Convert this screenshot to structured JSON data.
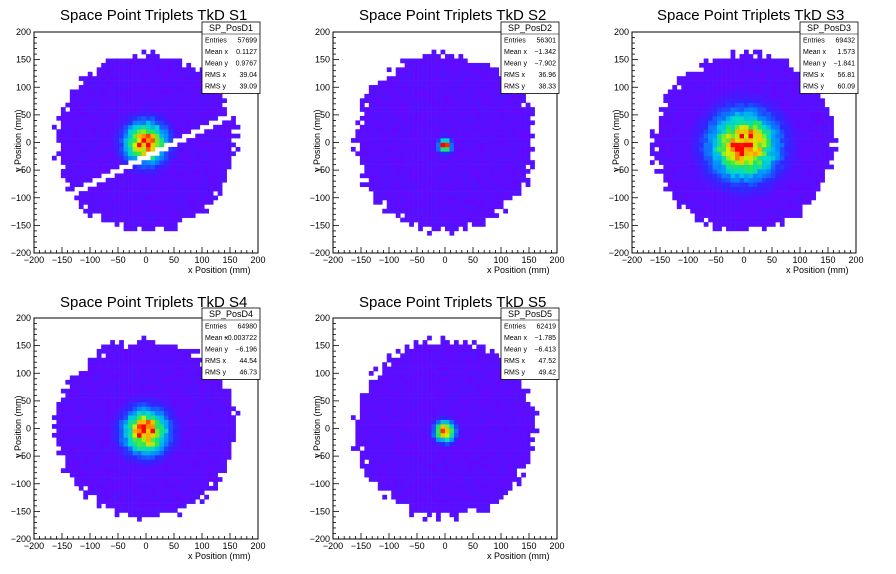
{
  "chart_data": [
    {
      "type": "heatmap",
      "title": "Space Point Triplets TkD S1",
      "xlabel": "x Position (mm)",
      "ylabel": "y Position (mm)",
      "xlim": [
        -200,
        200
      ],
      "ylim": [
        -200,
        200
      ],
      "xticks": [
        -200,
        -150,
        -100,
        -50,
        0,
        50,
        100,
        150,
        200
      ],
      "yticks": [
        -200,
        -150,
        -100,
        -50,
        0,
        50,
        100,
        150,
        200
      ],
      "stats": {
        "name": "SP_PosD1",
        "rows": [
          [
            "Entries",
            "57699"
          ],
          [
            "Mean x",
            "0.1127"
          ],
          [
            "Mean y",
            "0.9767"
          ],
          [
            "RMS x",
            "39.04"
          ],
          [
            "RMS y",
            "39.09"
          ]
        ]
      },
      "distribution": {
        "radius": 160,
        "core_sigma": 28,
        "peak": [
          0,
          0
        ],
        "gap": "diagonal band",
        "gap_offset": -25
      }
    },
    {
      "type": "heatmap",
      "title": "Space Point Triplets TkD S2",
      "xlabel": "x Position (mm)",
      "ylabel": "y Position (mm)",
      "xlim": [
        -200,
        200
      ],
      "ylim": [
        -200,
        200
      ],
      "xticks": [
        -200,
        -150,
        -100,
        -50,
        0,
        50,
        100,
        150,
        200
      ],
      "yticks": [
        -200,
        -150,
        -100,
        -50,
        0,
        50,
        100,
        150,
        200
      ],
      "stats": {
        "name": "SP_PosD2",
        "rows": [
          [
            "Entries",
            "56301"
          ],
          [
            "Mean x",
            "-1.342"
          ],
          [
            "Mean y",
            "-7.902"
          ],
          [
            "RMS x",
            "36.96"
          ],
          [
            "RMS y",
            "38.33"
          ]
        ]
      },
      "distribution": {
        "radius": 160,
        "core_sigma": 9,
        "peak": [
          0,
          -5
        ],
        "gap": "none",
        "gap_offset": 0
      }
    },
    {
      "type": "heatmap",
      "title": "Space Point Triplets TkD S3",
      "xlabel": "x Position (mm)",
      "ylabel": "y Position (mm)",
      "xlim": [
        -200,
        200
      ],
      "ylim": [
        -200,
        200
      ],
      "xticks": [
        -200,
        -150,
        -100,
        -50,
        0,
        50,
        100,
        150,
        200
      ],
      "yticks": [
        -200,
        -150,
        -100,
        -50,
        0,
        50,
        100,
        150,
        200
      ],
      "stats": {
        "name": "SP_PosD3",
        "rows": [
          [
            "Entries",
            "69432"
          ],
          [
            "Mean x",
            "1.573"
          ],
          [
            "Mean y",
            "-1.841"
          ],
          [
            "RMS x",
            "56.81"
          ],
          [
            "RMS y",
            "60.09"
          ]
        ]
      },
      "distribution": {
        "radius": 160,
        "core_sigma": 45,
        "peak": [
          0,
          -5
        ],
        "gap": "none",
        "gap_offset": 0
      }
    },
    {
      "type": "heatmap",
      "title": "Space Point Triplets TkD S4",
      "xlabel": "x Position (mm)",
      "ylabel": "y Position (mm)",
      "xlim": [
        -200,
        200
      ],
      "ylim": [
        -200,
        200
      ],
      "xticks": [
        -200,
        -150,
        -100,
        -50,
        0,
        50,
        100,
        150,
        200
      ],
      "yticks": [
        -200,
        -150,
        -100,
        -50,
        0,
        50,
        100,
        150,
        200
      ],
      "stats": {
        "name": "SP_PosD4",
        "rows": [
          [
            "Entries",
            "64980"
          ],
          [
            "Mean x",
            "-0.003722"
          ],
          [
            "Mean y",
            "-6.196"
          ],
          [
            "RMS x",
            "44.54"
          ],
          [
            "RMS y",
            "46.73"
          ]
        ]
      },
      "distribution": {
        "radius": 160,
        "core_sigma": 30,
        "peak": [
          0,
          -5
        ],
        "gap": "none",
        "gap_offset": 0
      }
    },
    {
      "type": "heatmap",
      "title": "Space Point Triplets TkD S5",
      "xlabel": "x Position (mm)",
      "ylabel": "y Position (mm)",
      "xlim": [
        -200,
        200
      ],
      "ylim": [
        -200,
        200
      ],
      "xticks": [
        -200,
        -150,
        -100,
        -50,
        0,
        50,
        100,
        150,
        200
      ],
      "yticks": [
        -200,
        -150,
        -100,
        -50,
        0,
        50,
        100,
        150,
        200
      ],
      "stats": {
        "name": "SP_PosD5",
        "rows": [
          [
            "Entries",
            "62419"
          ],
          [
            "Mean x",
            "-1.785"
          ],
          [
            "Mean y",
            "-6.413"
          ],
          [
            "RMS x",
            "47.52"
          ],
          [
            "RMS y",
            "49.42"
          ]
        ]
      },
      "distribution": {
        "radius": 160,
        "core_sigma": 14,
        "peak": [
          0,
          -5
        ],
        "gap": "none",
        "gap_offset": 0
      }
    }
  ]
}
